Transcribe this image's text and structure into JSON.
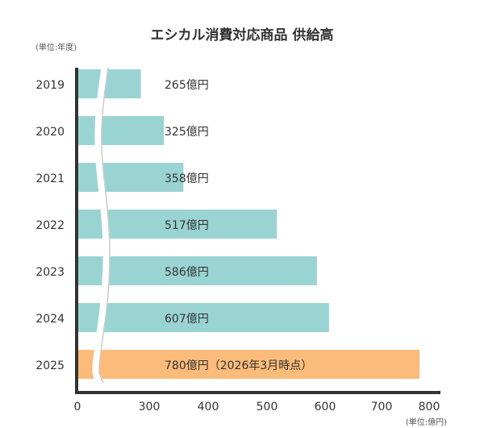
{
  "chart_data": {
    "type": "bar",
    "orientation": "horizontal",
    "title": "エシカル消費対応商品 供給高",
    "ylabel": "(単位:年度)",
    "xlabel": "(単位:億円)",
    "categories": [
      "2019",
      "2020",
      "2021",
      "2022",
      "2023",
      "2024",
      "2025"
    ],
    "values": [
      265,
      325,
      358,
      517,
      586,
      607,
      780
    ],
    "data_labels": [
      "265億円",
      "325億円",
      "358億円",
      "517億円",
      "586億円",
      "607億円",
      "780億円（2026年3月時点）"
    ],
    "x_ticks": [
      "0",
      "300",
      "400",
      "500",
      "600",
      "700",
      "800"
    ],
    "xlim": [
      0,
      800
    ],
    "axis_break": true,
    "grid": false,
    "colors": {
      "default": "#9ad4d2",
      "highlight": "#fbbb7b",
      "axis": "#333333"
    },
    "highlight_category": "2025"
  }
}
